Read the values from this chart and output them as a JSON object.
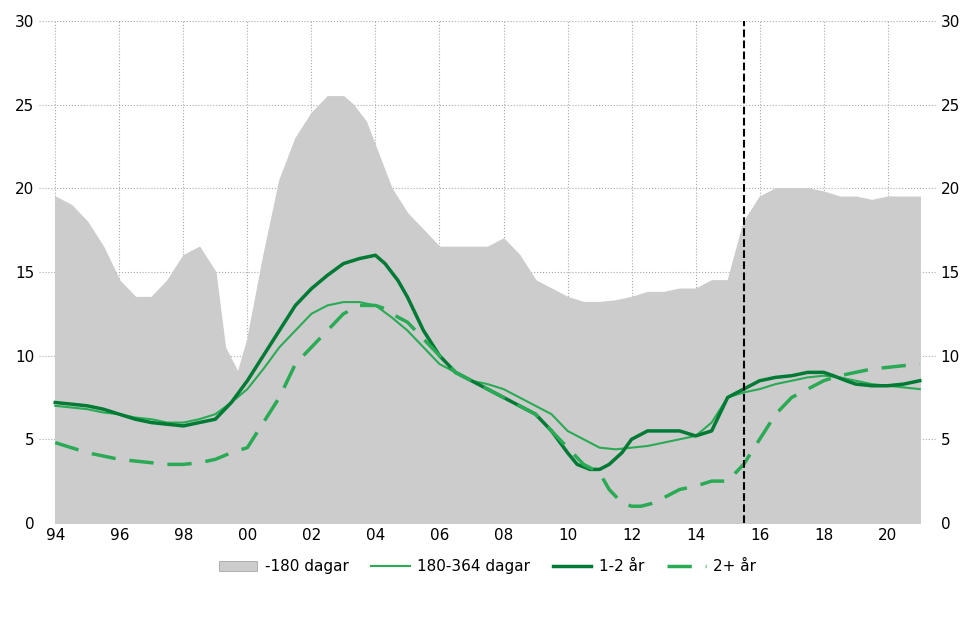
{
  "ylim": [
    0,
    30
  ],
  "yticks": [
    0,
    5,
    10,
    15,
    20,
    25,
    30
  ],
  "xtick_values": [
    1994,
    1996,
    1998,
    2000,
    2002,
    2004,
    2006,
    2008,
    2010,
    2012,
    2014,
    2016,
    2018,
    2020
  ],
  "xtick_labels": [
    "94",
    "96",
    "98",
    "00",
    "02",
    "04",
    "06",
    "08",
    "10",
    "12",
    "14",
    "16",
    "18",
    "20"
  ],
  "xlim": [
    1993.5,
    2021.5
  ],
  "vline_x": 2015.5,
  "background_color": "#ffffff",
  "grid_color": "#aaaaaa",
  "fill_color": "#cccccc",
  "line_color_thin": "#2aaa55",
  "line_color_thick": "#007a35",
  "line_color_dashed": "#2aaa55",
  "legend_labels": [
    "-180 dagar",
    "180-364 dagar",
    "1-2 år",
    "2+ år"
  ],
  "area_data_x": [
    1994,
    1994.5,
    1995,
    1995.5,
    1996,
    1996.5,
    1997,
    1997.5,
    1998,
    1998.5,
    1999,
    1999.3,
    1999.7,
    2000,
    2000.5,
    2001,
    2001.5,
    2002,
    2002.5,
    2003,
    2003.3,
    2003.7,
    2004,
    2004.5,
    2005,
    2005.5,
    2006,
    2006.5,
    2007,
    2007.5,
    2008,
    2008.5,
    2009,
    2009.5,
    2010,
    2010.5,
    2011,
    2011.5,
    2012,
    2012.5,
    2013,
    2013.5,
    2014,
    2014.5,
    2015,
    2015.5,
    2016,
    2016.5,
    2017,
    2017.5,
    2018,
    2018.5,
    2019,
    2019.5,
    2020,
    2020.5,
    2021
  ],
  "area_data_y": [
    19.5,
    19.0,
    18.0,
    16.5,
    14.5,
    13.5,
    13.5,
    14.5,
    16.0,
    16.5,
    15.0,
    10.5,
    9.0,
    11.0,
    16.0,
    20.5,
    23.0,
    24.5,
    25.5,
    25.5,
    25.0,
    24.0,
    22.5,
    20.0,
    18.5,
    17.5,
    16.5,
    16.5,
    16.5,
    16.5,
    17.0,
    16.0,
    14.5,
    14.0,
    13.5,
    13.2,
    13.2,
    13.3,
    13.5,
    13.8,
    13.8,
    14.0,
    14.0,
    14.5,
    14.5,
    18.0,
    19.5,
    20.0,
    20.0,
    20.0,
    19.8,
    19.5,
    19.5,
    19.3,
    19.5,
    19.5,
    19.5
  ],
  "line180_364_x": [
    1994,
    1994.5,
    1995,
    1995.5,
    1996,
    1996.5,
    1997,
    1997.5,
    1998,
    1998.5,
    1999,
    1999.5,
    2000,
    2000.5,
    2001,
    2001.5,
    2002,
    2002.5,
    2003,
    2003.5,
    2004,
    2004.5,
    2005,
    2005.5,
    2006,
    2006.5,
    2007,
    2007.5,
    2008,
    2008.5,
    2009,
    2009.5,
    2010,
    2010.5,
    2011,
    2011.5,
    2012,
    2012.5,
    2013,
    2013.5,
    2014,
    2014.5,
    2015,
    2015.5,
    2016,
    2016.5,
    2017,
    2017.5,
    2018,
    2018.5,
    2019,
    2019.5,
    2020,
    2020.5,
    2021
  ],
  "line180_364_y": [
    7.0,
    6.9,
    6.8,
    6.6,
    6.5,
    6.3,
    6.2,
    6.0,
    6.0,
    6.2,
    6.5,
    7.2,
    8.0,
    9.2,
    10.5,
    11.5,
    12.5,
    13.0,
    13.2,
    13.2,
    13.0,
    12.3,
    11.5,
    10.5,
    9.5,
    9.0,
    8.5,
    8.3,
    8.0,
    7.5,
    7.0,
    6.5,
    5.5,
    5.0,
    4.5,
    4.4,
    4.5,
    4.6,
    4.8,
    5.0,
    5.2,
    6.0,
    7.5,
    7.8,
    8.0,
    8.3,
    8.5,
    8.7,
    8.8,
    8.7,
    8.5,
    8.3,
    8.2,
    8.1,
    8.0
  ],
  "line12yr_x": [
    1994,
    1994.5,
    1995,
    1995.5,
    1996,
    1996.5,
    1997,
    1997.5,
    1998,
    1998.5,
    1999,
    1999.5,
    2000,
    2000.5,
    2001,
    2001.5,
    2002,
    2002.5,
    2003,
    2003.5,
    2004,
    2004.3,
    2004.7,
    2005,
    2005.5,
    2006,
    2006.5,
    2007,
    2007.5,
    2008,
    2008.5,
    2009,
    2009.5,
    2010,
    2010.3,
    2010.7,
    2011,
    2011.3,
    2011.7,
    2012,
    2012.5,
    2013,
    2013.5,
    2014,
    2014.5,
    2015,
    2015.5,
    2016,
    2016.5,
    2017,
    2017.5,
    2018,
    2018.3,
    2018.7,
    2019,
    2019.5,
    2020,
    2020.5,
    2021
  ],
  "line12yr_y": [
    7.2,
    7.1,
    7.0,
    6.8,
    6.5,
    6.2,
    6.0,
    5.9,
    5.8,
    6.0,
    6.2,
    7.2,
    8.5,
    10.0,
    11.5,
    13.0,
    14.0,
    14.8,
    15.5,
    15.8,
    16.0,
    15.5,
    14.5,
    13.5,
    11.5,
    10.0,
    9.0,
    8.5,
    8.0,
    7.5,
    7.0,
    6.5,
    5.5,
    4.2,
    3.5,
    3.2,
    3.2,
    3.5,
    4.2,
    5.0,
    5.5,
    5.5,
    5.5,
    5.2,
    5.5,
    7.5,
    8.0,
    8.5,
    8.7,
    8.8,
    9.0,
    9.0,
    8.8,
    8.5,
    8.3,
    8.2,
    8.2,
    8.3,
    8.5
  ],
  "line2plus_x": [
    1994,
    1994.5,
    1995,
    1995.5,
    1996,
    1996.5,
    1997,
    1997.5,
    1998,
    1998.5,
    1999,
    1999.5,
    2000,
    2000.5,
    2001,
    2001.5,
    2002,
    2002.5,
    2003,
    2003.5,
    2004,
    2004.3,
    2004.7,
    2005,
    2005.5,
    2006,
    2006.5,
    2007,
    2007.5,
    2008,
    2008.5,
    2009,
    2009.5,
    2010,
    2010.5,
    2011,
    2011.3,
    2011.7,
    2012,
    2012.3,
    2012.7,
    2013,
    2013.5,
    2014,
    2014.5,
    2015,
    2015.5,
    2016,
    2016.5,
    2017,
    2017.5,
    2018,
    2018.5,
    2019,
    2019.5,
    2020,
    2020.5,
    2021
  ],
  "line2plus_y": [
    4.8,
    4.5,
    4.2,
    4.0,
    3.8,
    3.7,
    3.6,
    3.5,
    3.5,
    3.6,
    3.8,
    4.2,
    4.5,
    6.0,
    7.5,
    9.5,
    10.5,
    11.5,
    12.5,
    13.0,
    13.0,
    12.8,
    12.3,
    12.0,
    11.0,
    10.0,
    9.0,
    8.5,
    8.0,
    7.5,
    7.0,
    6.5,
    5.5,
    4.5,
    3.5,
    3.0,
    2.0,
    1.2,
    1.0,
    1.0,
    1.2,
    1.5,
    2.0,
    2.2,
    2.5,
    2.5,
    3.5,
    5.0,
    6.5,
    7.5,
    8.0,
    8.5,
    8.8,
    9.0,
    9.2,
    9.3,
    9.4,
    9.5
  ]
}
